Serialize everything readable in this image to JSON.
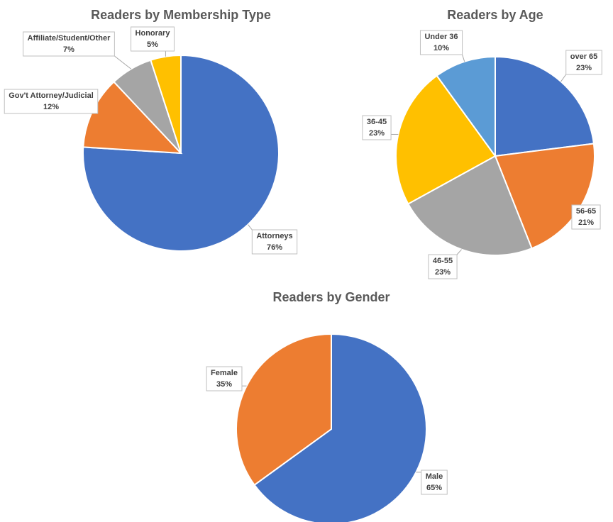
{
  "chart_data": [
    {
      "type": "pie",
      "title": "Readers by Membership Type",
      "categories": [
        "Attorneys",
        "Gov't Attorney/Judicial",
        "Affiliate/Student/Other",
        "Honorary"
      ],
      "values": [
        76,
        12,
        7,
        5
      ],
      "value_labels": [
        "76%",
        "12%",
        "7%",
        "5%"
      ],
      "colors": [
        "#4472c4",
        "#ed7d31",
        "#a5a5a5",
        "#ffc000"
      ]
    },
    {
      "type": "pie",
      "title": "Readers by Age",
      "categories": [
        "over 65",
        "56-65",
        "46-55",
        "36-45",
        "Under 36"
      ],
      "values": [
        23,
        21,
        23,
        23,
        10
      ],
      "value_labels": [
        "23%",
        "21%",
        "23%",
        "23%",
        "10%"
      ],
      "colors": [
        "#4472c4",
        "#ed7d31",
        "#a5a5a5",
        "#ffc000",
        "#5b9bd5"
      ]
    },
    {
      "type": "pie",
      "title": "Readers by Gender",
      "categories": [
        "Male",
        "Female"
      ],
      "values": [
        65,
        35
      ],
      "value_labels": [
        "65%",
        "35%"
      ],
      "colors": [
        "#4472c4",
        "#ed7d31"
      ]
    }
  ]
}
